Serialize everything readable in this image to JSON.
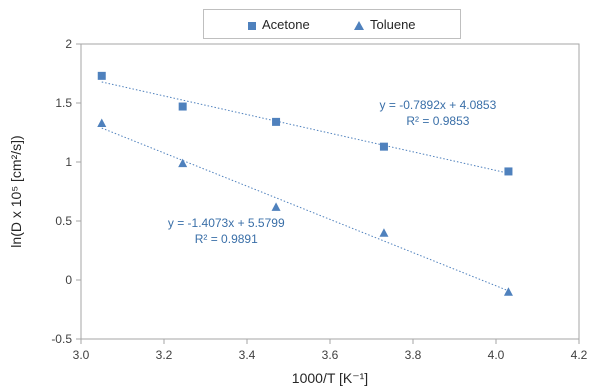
{
  "chart_data": {
    "type": "scatter",
    "xlabel": "1000/T [K⁻¹]",
    "ylabel": "ln(D x 10⁵ [cm²/s])",
    "xlim": [
      3.0,
      4.2
    ],
    "ylim": [
      -0.5,
      2.0
    ],
    "xticks": [
      "3.0",
      "3.2",
      "3.4",
      "3.6",
      "3.8",
      "4.0",
      "4.2"
    ],
    "yticks": [
      "-0.5",
      "0",
      "0.5",
      "1",
      "1.5",
      "2"
    ],
    "legend_position": "top-center",
    "grid": false,
    "series": [
      {
        "name": "Acetone",
        "marker": "square",
        "color": "#4f81bd",
        "x": [
          3.05,
          3.245,
          3.47,
          3.73,
          4.03
        ],
        "y": [
          1.73,
          1.47,
          1.34,
          1.13,
          0.92
        ],
        "trendline": {
          "slope": -0.7892,
          "intercept": 4.0853
        },
        "equation": "y = -0.7892x + 4.0853",
        "r2": "R² = 0.9853"
      },
      {
        "name": "Toluene",
        "marker": "triangle",
        "color": "#4f81bd",
        "x": [
          3.05,
          3.245,
          3.47,
          3.73,
          4.03
        ],
        "y": [
          1.33,
          0.99,
          0.62,
          0.4,
          -0.1
        ],
        "trendline": {
          "slope": -1.4073,
          "intercept": 5.5799
        },
        "equation": "y = -1.4073x + 5.5799",
        "r2": "R² = 0.9891"
      }
    ]
  }
}
